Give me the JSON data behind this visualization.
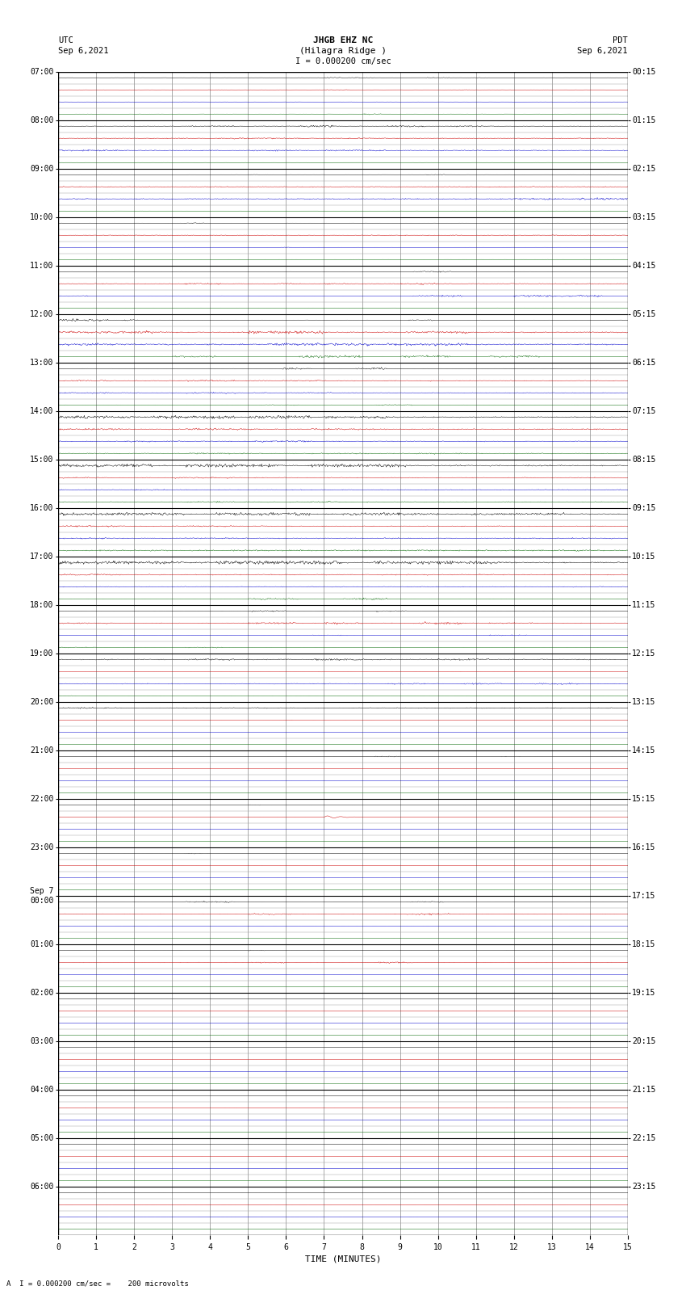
{
  "title_line1": "JHGB EHZ NC",
  "title_line2": "(Hilagra Ridge )",
  "scale_text": "I = 0.000200 cm/sec",
  "left_label_top": "UTC",
  "left_label_date": "Sep 6,2021",
  "right_label_top": "PDT",
  "right_label_date": "Sep 6,2021",
  "bottom_label": "TIME (MINUTES)",
  "bottom_note": "A  I = 0.000200 cm/sec =    200 microvolts",
  "n_hours": 24,
  "sub_rows_per_hour": 4,
  "minutes_per_row": 15,
  "x_ticks": [
    0,
    1,
    2,
    3,
    4,
    5,
    6,
    7,
    8,
    9,
    10,
    11,
    12,
    13,
    14,
    15
  ],
  "utc_labels": [
    "07:00",
    "08:00",
    "09:00",
    "10:00",
    "11:00",
    "12:00",
    "13:00",
    "14:00",
    "15:00",
    "16:00",
    "17:00",
    "18:00",
    "19:00",
    "20:00",
    "21:00",
    "22:00",
    "23:00",
    "Sep 7\n00:00",
    "01:00",
    "02:00",
    "03:00",
    "04:00",
    "05:00",
    "06:00"
  ],
  "pdt_labels": [
    "00:15",
    "01:15",
    "02:15",
    "03:15",
    "04:15",
    "05:15",
    "06:15",
    "07:15",
    "08:15",
    "09:15",
    "10:15",
    "11:15",
    "12:15",
    "13:15",
    "14:15",
    "15:15",
    "16:15",
    "17:15",
    "18:15",
    "19:15",
    "20:15",
    "21:15",
    "22:15",
    "23:15"
  ],
  "bg_color": "#ffffff",
  "trace_color_cycle": [
    "#000000",
    "#cc0000",
    "#0000cc",
    "#006600"
  ],
  "grid_color_minor": "#cccccc",
  "grid_color_major": "#888888",
  "fig_width": 8.5,
  "fig_height": 16.13
}
